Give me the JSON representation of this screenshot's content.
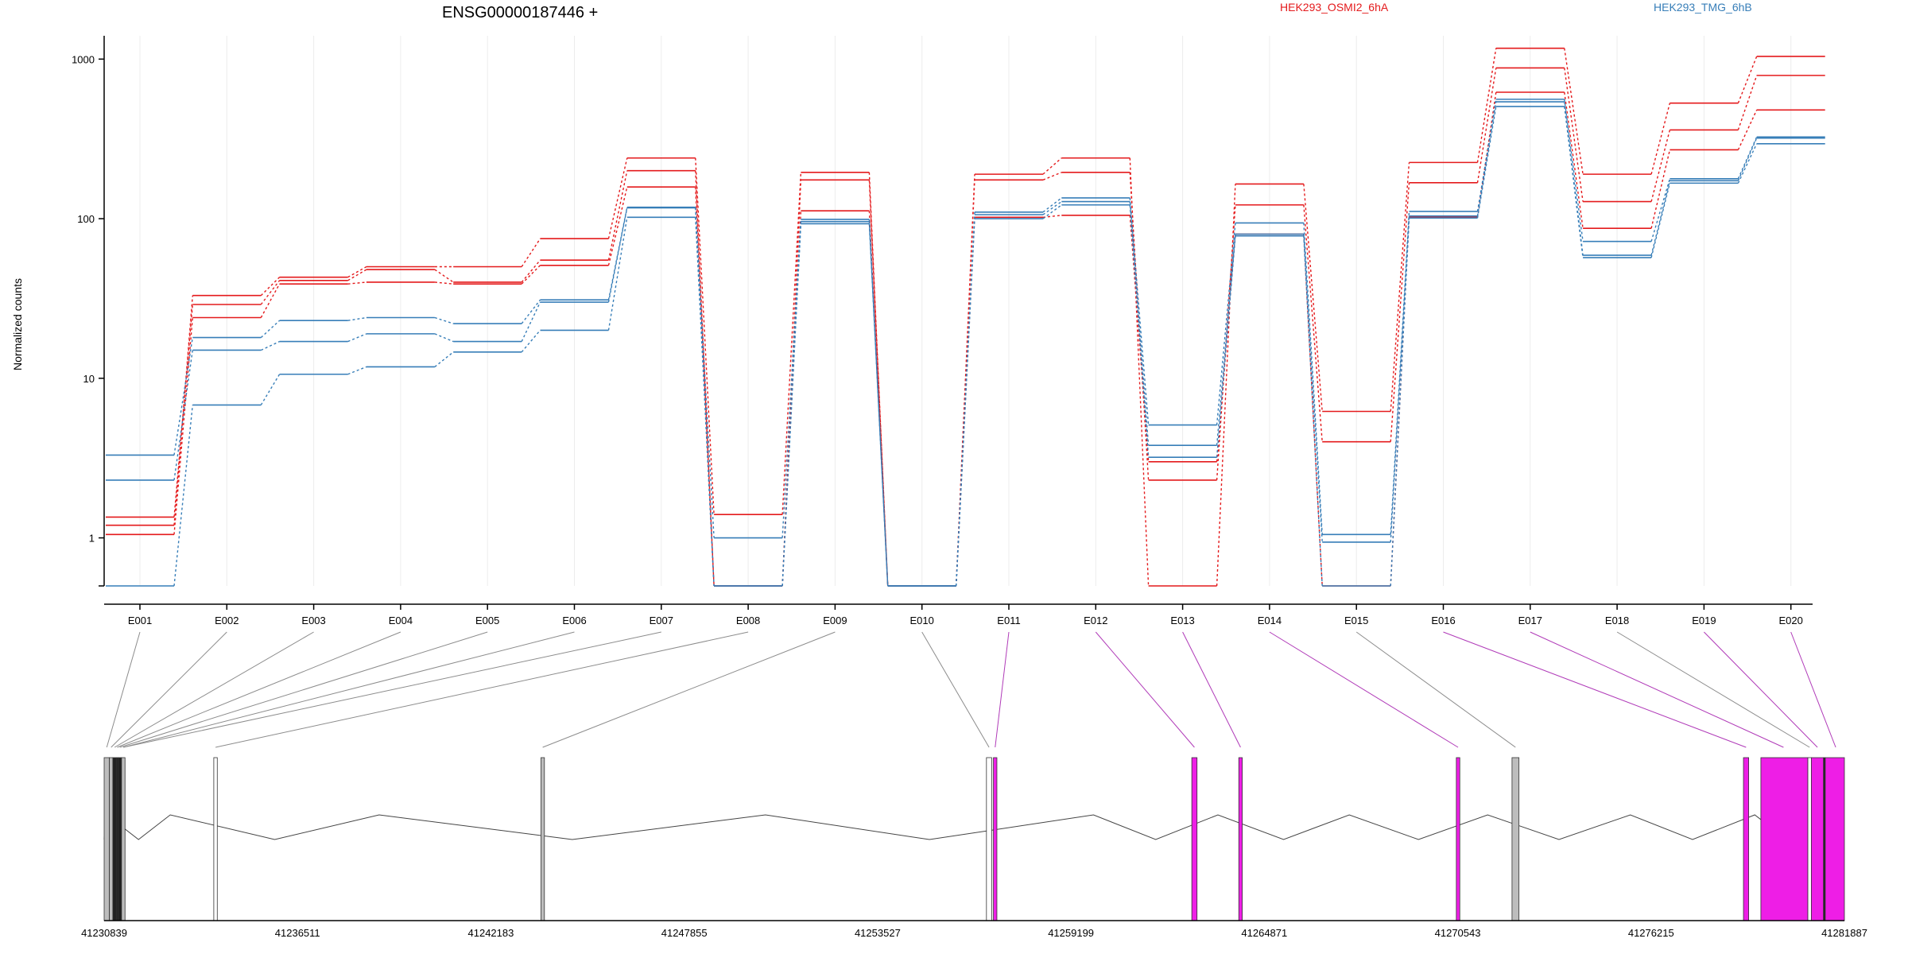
{
  "chart_data": {
    "type": "line",
    "title": "ENSG00000187446 +",
    "ylabel": "Normalized counts",
    "yscale": "log",
    "ylim": [
      0.5,
      1400
    ],
    "yticks": [
      1,
      10,
      100,
      1000
    ],
    "ytick_labels": [
      "1",
      "10",
      "100",
      "1000"
    ],
    "vertical_grid": true,
    "legend_placement": "top-right",
    "colors": {
      "OSMI2": "#e41a1c",
      "TMG": "#377eb8",
      "exon_grey": "#bdbdbd",
      "exon_magenta": "#ee1ee6",
      "connector_grey": "#8c8c8c",
      "connector_magenta": "#b03ab8"
    },
    "categories": [
      "E001",
      "E002",
      "E003",
      "E004",
      "E005",
      "E006",
      "E007",
      "E008",
      "E009",
      "E010",
      "E011",
      "E012",
      "E013",
      "E014",
      "E015",
      "E016",
      "E017",
      "E018",
      "E019",
      "E020"
    ],
    "legend": [
      {
        "name": "HEK293_OSMI2_6hA",
        "color": "#e41a1c"
      },
      {
        "name": "HEK293_TMG_6hB",
        "color": "#377eb8"
      }
    ],
    "series": [
      {
        "group": "OSMI2",
        "color": "#e41a1c",
        "values": [
          1.2,
          33,
          43,
          50,
          50,
          75,
          240,
          1.4,
          195,
          0.5,
          190,
          240,
          0.5,
          165,
          6.2,
          225,
          1170,
          190,
          530,
          1040
        ]
      },
      {
        "group": "OSMI2",
        "color": "#e41a1c",
        "values": [
          1.35,
          29,
          41,
          48,
          40,
          55,
          200,
          0.5,
          175,
          0.5,
          175,
          195,
          2.3,
          122,
          4.0,
          168,
          880,
          128,
          360,
          790
        ]
      },
      {
        "group": "OSMI2",
        "color": "#e41a1c",
        "values": [
          1.05,
          24,
          39,
          40,
          39,
          51,
          158,
          0.5,
          112,
          0.5,
          102,
          105,
          3.0,
          80,
          0.5,
          102,
          620,
          87,
          270,
          480
        ]
      },
      {
        "group": "TMG",
        "color": "#377eb8",
        "values": [
          3.3,
          18,
          23,
          24,
          22,
          31,
          118,
          1.0,
          99,
          0.5,
          110,
          135,
          5.1,
          94,
          1.05,
          111,
          560,
          72,
          178,
          325
        ]
      },
      {
        "group": "TMG",
        "color": "#377eb8",
        "values": [
          2.3,
          15,
          17,
          19,
          17,
          30,
          117,
          0.5,
          96,
          0.5,
          106,
          128,
          3.8,
          80,
          0.94,
          104,
          540,
          59,
          173,
          320
        ]
      },
      {
        "group": "TMG",
        "color": "#377eb8",
        "values": [
          0.5,
          6.8,
          10.6,
          11.8,
          14.6,
          20,
          102,
          0.5,
          93,
          0.5,
          100,
          122,
          3.2,
          78,
          0.5,
          101,
          505,
          57,
          167,
          295
        ]
      }
    ],
    "gene_model": {
      "coordinate_labels": [
        "41230839",
        "41236511",
        "41242183",
        "41247855",
        "41253527",
        "41259199",
        "41264871",
        "41270543",
        "41276215",
        "41281887"
      ],
      "exons": [
        {
          "id": "E001",
          "start": 0.0,
          "end": 0.003,
          "fill": "grey"
        },
        {
          "id": "E002",
          "start": 0.003,
          "end": 0.005,
          "fill": "grey"
        },
        {
          "id": "E003",
          "start": 0.005,
          "end": 0.007,
          "fill": "black"
        },
        {
          "id": "E004",
          "start": 0.007,
          "end": 0.008,
          "fill": "black"
        },
        {
          "id": "E005",
          "start": 0.008,
          "end": 0.01,
          "fill": "black"
        },
        {
          "id": "E006",
          "start": 0.01,
          "end": 0.012,
          "fill": "grey"
        },
        {
          "id": "E007",
          "start": 0.063,
          "end": 0.065,
          "fill": "white"
        },
        {
          "id": "E008",
          "start": 0.251,
          "end": 0.253,
          "fill": "grey"
        },
        {
          "id": "E009",
          "start": 0.507,
          "end": 0.51,
          "fill": "white"
        },
        {
          "id": "E010",
          "start": 0.511,
          "end": 0.513,
          "fill": "magenta"
        },
        {
          "id": "E011",
          "start": 0.625,
          "end": 0.628,
          "fill": "magenta"
        },
        {
          "id": "E012",
          "start": 0.652,
          "end": 0.654,
          "fill": "magenta"
        },
        {
          "id": "E013",
          "start": 0.777,
          "end": 0.779,
          "fill": "magenta"
        },
        {
          "id": "E014",
          "start": 0.809,
          "end": 0.813,
          "fill": "grey"
        },
        {
          "id": "E015",
          "start": 0.942,
          "end": 0.945,
          "fill": "magenta"
        },
        {
          "id": "E016",
          "start": 0.952,
          "end": 0.979,
          "fill": "magenta"
        },
        {
          "id": "E017",
          "start": 0.979,
          "end": 0.981,
          "fill": "white"
        },
        {
          "id": "E018",
          "start": 0.981,
          "end": 0.988,
          "fill": "magenta"
        },
        {
          "id": "E019",
          "start": 0.988,
          "end": 0.989,
          "fill": "black"
        },
        {
          "id": "E020",
          "start": 0.989,
          "end": 1.0,
          "fill": "magenta"
        }
      ],
      "links": [
        {
          "exon": 0,
          "at": 0.0015,
          "color": "grey"
        },
        {
          "exon": 1,
          "at": 0.004,
          "color": "grey"
        },
        {
          "exon": 2,
          "at": 0.006,
          "color": "grey"
        },
        {
          "exon": 3,
          "at": 0.0075,
          "color": "grey"
        },
        {
          "exon": 4,
          "at": 0.009,
          "color": "grey"
        },
        {
          "exon": 5,
          "at": 0.011,
          "color": "grey"
        },
        {
          "exon": 6,
          "at": 0.011,
          "color": "grey"
        },
        {
          "exon": 7,
          "at": 0.064,
          "color": "grey"
        },
        {
          "exon": 8,
          "at": 0.252,
          "color": "grey"
        },
        {
          "exon": 9,
          "at": 0.5085,
          "color": "grey"
        },
        {
          "exon": 10,
          "at": 0.512,
          "color": "magenta"
        },
        {
          "exon": 11,
          "at": 0.6265,
          "color": "magenta"
        },
        {
          "exon": 12,
          "at": 0.653,
          "color": "magenta"
        },
        {
          "exon": 13,
          "at": 0.778,
          "color": "magenta"
        },
        {
          "exon": 14,
          "at": 0.811,
          "color": "grey"
        },
        {
          "exon": 15,
          "at": 0.9435,
          "color": "magenta"
        },
        {
          "exon": 16,
          "at": 0.965,
          "color": "magenta"
        },
        {
          "exon": 17,
          "at": 0.98,
          "color": "grey"
        },
        {
          "exon": 18,
          "at": 0.9845,
          "color": "magenta"
        },
        {
          "exon": 19,
          "at": 0.995,
          "color": "magenta"
        }
      ],
      "intron_peaks": [
        0.0015,
        0.038,
        0.158,
        0.38,
        0.5685,
        0.64,
        0.7155,
        0.795,
        0.877,
        0.9485,
        0.985
      ]
    }
  }
}
